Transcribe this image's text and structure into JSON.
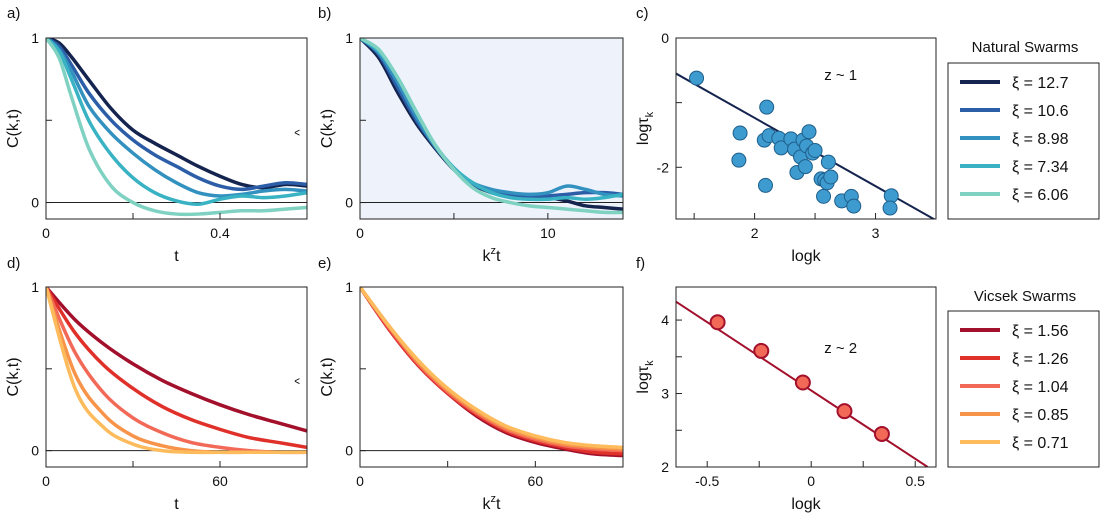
{
  "chart_data": [
    {
      "panel": "a)",
      "type": "line",
      "xlabel": "t",
      "ylabel": "C(k,t)",
      "xlim": [
        0,
        0.6
      ],
      "ylim": [
        -0.1,
        1.0
      ],
      "xticks": [
        0,
        0.4
      ],
      "yticks": [
        0,
        1
      ],
      "zero_line": true,
      "series": [
        {
          "legend": "ξ = 12.7",
          "color": "#14244f",
          "x": [
            0,
            0.03,
            0.06,
            0.1,
            0.15,
            0.2,
            0.25,
            0.3,
            0.35,
            0.4,
            0.45,
            0.5,
            0.55,
            0.6
          ],
          "y": [
            1.0,
            0.97,
            0.88,
            0.74,
            0.57,
            0.44,
            0.36,
            0.29,
            0.22,
            0.16,
            0.11,
            0.09,
            0.11,
            0.1
          ]
        },
        {
          "legend": "ξ = 10.6",
          "color": "#2c5ea8",
          "x": [
            0,
            0.03,
            0.06,
            0.1,
            0.15,
            0.2,
            0.25,
            0.3,
            0.35,
            0.4,
            0.45,
            0.5,
            0.55,
            0.6
          ],
          "y": [
            1.0,
            0.95,
            0.83,
            0.66,
            0.5,
            0.38,
            0.29,
            0.22,
            0.15,
            0.1,
            0.08,
            0.1,
            0.12,
            0.11
          ]
        },
        {
          "legend": "ξ = 8.98",
          "color": "#3391c0",
          "x": [
            0,
            0.03,
            0.06,
            0.1,
            0.15,
            0.2,
            0.25,
            0.3,
            0.35,
            0.4,
            0.45,
            0.5,
            0.55,
            0.6
          ],
          "y": [
            1.0,
            0.93,
            0.79,
            0.58,
            0.42,
            0.3,
            0.2,
            0.12,
            0.06,
            0.04,
            0.05,
            0.07,
            0.08,
            0.07
          ]
        },
        {
          "legend": "ξ = 7.34",
          "color": "#39b3c4",
          "x": [
            0,
            0.03,
            0.06,
            0.1,
            0.15,
            0.2,
            0.25,
            0.3,
            0.35,
            0.4,
            0.45,
            0.5,
            0.55,
            0.6
          ],
          "y": [
            1.0,
            0.92,
            0.74,
            0.49,
            0.29,
            0.15,
            0.06,
            0.01,
            -0.01,
            0.02,
            0.04,
            0.03,
            0.04,
            0.06
          ]
        },
        {
          "legend": "ξ = 6.06",
          "color": "#7fd2c2",
          "x": [
            0,
            0.03,
            0.06,
            0.1,
            0.15,
            0.2,
            0.25,
            0.3,
            0.35,
            0.4,
            0.45,
            0.5,
            0.55,
            0.6
          ],
          "y": [
            1.0,
            0.88,
            0.63,
            0.32,
            0.1,
            0.0,
            -0.05,
            -0.07,
            -0.07,
            -0.06,
            -0.05,
            -0.05,
            -0.04,
            -0.03
          ]
        }
      ]
    },
    {
      "panel": "b)",
      "type": "line",
      "xlabel": "k^z t",
      "ylabel": "C(k,t)",
      "xlim": [
        0,
        14
      ],
      "ylim": [
        -0.1,
        1.0
      ],
      "xticks": [
        0,
        10
      ],
      "yticks": [
        0,
        1
      ],
      "zero_line": true,
      "shaded_background": "#eef3fb",
      "series": [
        {
          "legend": "ξ = 12.7",
          "color": "#14244f",
          "x": [
            0,
            1,
            2,
            3,
            4,
            5,
            6,
            7,
            8,
            9,
            10,
            11,
            12,
            13,
            14
          ],
          "y": [
            1.0,
            0.88,
            0.67,
            0.48,
            0.33,
            0.2,
            0.11,
            0.06,
            0.04,
            0.03,
            0.03,
            0.01,
            -0.02,
            -0.03,
            -0.04
          ]
        },
        {
          "legend": "ξ = 10.6",
          "color": "#2c5ea8",
          "x": [
            0,
            1,
            2,
            3,
            4,
            5,
            6,
            7,
            8,
            9,
            10,
            11,
            12,
            13,
            14
          ],
          "y": [
            1.0,
            0.9,
            0.7,
            0.5,
            0.34,
            0.2,
            0.11,
            0.07,
            0.05,
            0.04,
            0.04,
            0.05,
            0.06,
            0.06,
            0.05
          ]
        },
        {
          "legend": "ξ = 8.98",
          "color": "#3391c0",
          "x": [
            0,
            1,
            2,
            3,
            4,
            5,
            6,
            7,
            8,
            9,
            10,
            11,
            12,
            13,
            14
          ],
          "y": [
            1.0,
            0.91,
            0.73,
            0.52,
            0.34,
            0.21,
            0.12,
            0.08,
            0.06,
            0.05,
            0.06,
            0.1,
            0.08,
            0.05,
            0.04
          ]
        },
        {
          "legend": "ξ = 7.34",
          "color": "#39b3c4",
          "x": [
            0,
            1,
            2,
            3,
            4,
            5,
            6,
            7,
            8,
            9,
            10,
            11,
            12,
            13,
            14
          ],
          "y": [
            1.0,
            0.92,
            0.76,
            0.55,
            0.35,
            0.21,
            0.12,
            0.06,
            0.03,
            0.02,
            0.02,
            0.03,
            0.02,
            0.03,
            0.05
          ]
        },
        {
          "legend": "ξ = 6.06",
          "color": "#7fd2c2",
          "x": [
            0,
            1,
            2,
            3,
            4,
            5,
            6,
            7,
            8,
            9,
            10,
            11,
            12,
            13,
            14
          ],
          "y": [
            1.0,
            0.93,
            0.76,
            0.55,
            0.35,
            0.2,
            0.09,
            0.03,
            0.0,
            -0.02,
            -0.03,
            -0.04,
            -0.05,
            -0.06,
            -0.06
          ]
        }
      ]
    },
    {
      "panel": "c)",
      "type": "scatter",
      "xlabel": "logk",
      "ylabel": "logτk",
      "xlim": [
        1.35,
        3.5
      ],
      "ylim": [
        -2.8,
        0.0
      ],
      "xticks": [
        2,
        3
      ],
      "yticks": [
        0,
        -2
      ],
      "annotation": "z ~ 1",
      "marker_color": "#3d9bd0",
      "fit_color": "#14244f",
      "fit": {
        "x": [
          1.35,
          3.5
        ],
        "y": [
          -0.55,
          -2.82
        ]
      },
      "points": [
        {
          "x": 1.52,
          "y": -0.62
        },
        {
          "x": 1.88,
          "y": -1.47
        },
        {
          "x": 1.87,
          "y": -1.89
        },
        {
          "x": 2.1,
          "y": -1.07
        },
        {
          "x": 2.08,
          "y": -1.58
        },
        {
          "x": 2.12,
          "y": -1.51
        },
        {
          "x": 2.2,
          "y": -1.55
        },
        {
          "x": 2.22,
          "y": -1.7
        },
        {
          "x": 2.3,
          "y": -1.56
        },
        {
          "x": 2.33,
          "y": -1.72
        },
        {
          "x": 2.38,
          "y": -1.84
        },
        {
          "x": 2.4,
          "y": -1.58
        },
        {
          "x": 2.45,
          "y": -1.45
        },
        {
          "x": 2.43,
          "y": -1.67
        },
        {
          "x": 2.48,
          "y": -1.78
        },
        {
          "x": 2.5,
          "y": -1.74
        },
        {
          "x": 2.35,
          "y": -2.08
        },
        {
          "x": 2.42,
          "y": -1.99
        },
        {
          "x": 2.55,
          "y": -2.18
        },
        {
          "x": 2.58,
          "y": -2.2
        },
        {
          "x": 2.6,
          "y": -2.24
        },
        {
          "x": 2.63,
          "y": -2.15
        },
        {
          "x": 2.61,
          "y": -1.92
        },
        {
          "x": 2.57,
          "y": -2.45
        },
        {
          "x": 2.72,
          "y": -2.52
        },
        {
          "x": 2.8,
          "y": -2.45
        },
        {
          "x": 2.82,
          "y": -2.6
        },
        {
          "x": 3.13,
          "y": -2.44
        },
        {
          "x": 3.12,
          "y": -2.63
        },
        {
          "x": 2.09,
          "y": -2.28
        }
      ]
    },
    {
      "panel": "d)",
      "type": "line",
      "xlabel": "t",
      "ylabel": "C(k,t)",
      "xlim": [
        0,
        90
      ],
      "ylim": [
        -0.1,
        1.0
      ],
      "xticks": [
        0,
        60
      ],
      "yticks": [
        0,
        1
      ],
      "zero_line": true,
      "series": [
        {
          "legend": "ξ = 1.56",
          "color": "#a3102c",
          "x": [
            0,
            10,
            20,
            30,
            40,
            50,
            60,
            70,
            80,
            90
          ],
          "y": [
            1.0,
            0.8,
            0.65,
            0.53,
            0.43,
            0.35,
            0.28,
            0.22,
            0.17,
            0.12
          ]
        },
        {
          "legend": "ξ = 1.26",
          "color": "#e0302a",
          "x": [
            0,
            10,
            20,
            30,
            40,
            50,
            60,
            70,
            80,
            90
          ],
          "y": [
            1.0,
            0.72,
            0.52,
            0.38,
            0.27,
            0.19,
            0.13,
            0.08,
            0.05,
            0.02
          ]
        },
        {
          "legend": "ξ = 1.04",
          "color": "#f26a57",
          "x": [
            0,
            10,
            20,
            30,
            40,
            50,
            60,
            70,
            80,
            90
          ],
          "y": [
            1.0,
            0.6,
            0.35,
            0.2,
            0.11,
            0.05,
            0.02,
            0.0,
            -0.01,
            -0.01
          ]
        },
        {
          "legend": "ξ = 0.85",
          "color": "#f7944a",
          "x": [
            0,
            10,
            20,
            30,
            40,
            50,
            60,
            70,
            80,
            90
          ],
          "y": [
            1.0,
            0.47,
            0.22,
            0.09,
            0.03,
            0.0,
            -0.01,
            -0.01,
            -0.01,
            -0.01
          ]
        },
        {
          "legend": "ξ = 0.71",
          "color": "#fdbb5c",
          "x": [
            0,
            10,
            20,
            30,
            40,
            50,
            60,
            70,
            80,
            90
          ],
          "y": [
            1.0,
            0.38,
            0.14,
            0.04,
            0.0,
            -0.01,
            -0.01,
            -0.01,
            -0.01,
            -0.01
          ]
        }
      ]
    },
    {
      "panel": "e)",
      "type": "line",
      "xlabel": "k^z t",
      "ylabel": "C(k,t)",
      "xlim": [
        0,
        90
      ],
      "ylim": [
        -0.1,
        1.0
      ],
      "xticks": [
        0,
        60
      ],
      "yticks": [
        0,
        1
      ],
      "zero_line": true,
      "series": [
        {
          "legend": "ξ = 1.56",
          "color": "#a3102c",
          "x": [
            0,
            10,
            20,
            30,
            40,
            50,
            60,
            70,
            80,
            90
          ],
          "y": [
            1.0,
            0.74,
            0.52,
            0.35,
            0.21,
            0.11,
            0.05,
            0.01,
            -0.02,
            -0.03
          ]
        },
        {
          "legend": "ξ = 1.26",
          "color": "#e0302a",
          "x": [
            0,
            10,
            20,
            30,
            40,
            50,
            60,
            70,
            80,
            90
          ],
          "y": [
            1.0,
            0.74,
            0.52,
            0.35,
            0.22,
            0.12,
            0.06,
            0.02,
            -0.01,
            -0.02
          ]
        },
        {
          "legend": "ξ = 1.04",
          "color": "#f26a57",
          "x": [
            0,
            10,
            20,
            30,
            40,
            50,
            60,
            70,
            80,
            90
          ],
          "y": [
            1.0,
            0.75,
            0.53,
            0.36,
            0.23,
            0.13,
            0.07,
            0.03,
            0.01,
            0.0
          ]
        },
        {
          "legend": "ξ = 0.85",
          "color": "#f7944a",
          "x": [
            0,
            10,
            20,
            30,
            40,
            50,
            60,
            70,
            80,
            90
          ],
          "y": [
            1.0,
            0.76,
            0.54,
            0.37,
            0.24,
            0.14,
            0.08,
            0.04,
            0.02,
            0.01
          ]
        },
        {
          "legend": "ξ = 0.71",
          "color": "#fdbb5c",
          "x": [
            0,
            10,
            20,
            30,
            40,
            50,
            60,
            70,
            80,
            90
          ],
          "y": [
            1.0,
            0.76,
            0.55,
            0.38,
            0.25,
            0.15,
            0.09,
            0.05,
            0.03,
            0.02
          ]
        }
      ]
    },
    {
      "panel": "f)",
      "type": "scatter",
      "xlabel": "logk",
      "ylabel": "logτk",
      "xlim": [
        -0.65,
        0.6
      ],
      "ylim": [
        2.0,
        4.45
      ],
      "xticks": [
        -0.5,
        0,
        0.5
      ],
      "yticks": [
        2,
        3,
        4
      ],
      "annotation": "z ~ 2",
      "marker_color": "#f26a57",
      "marker_edge": "#a3102c",
      "fit_color": "#a3102c",
      "fit": {
        "x": [
          -0.65,
          0.56
        ],
        "y": [
          4.25,
          2.0
        ]
      },
      "points": [
        {
          "x": -0.45,
          "y": 3.97
        },
        {
          "x": -0.24,
          "y": 3.58
        },
        {
          "x": -0.04,
          "y": 3.15
        },
        {
          "x": 0.16,
          "y": 2.76
        },
        {
          "x": 0.34,
          "y": 2.45
        }
      ]
    }
  ],
  "legends": {
    "natural": {
      "title": "Natural Swarms",
      "panels": [
        0,
        1
      ]
    },
    "vicsek": {
      "title": "Vicsek Swarms",
      "panels": [
        3,
        4
      ]
    }
  }
}
